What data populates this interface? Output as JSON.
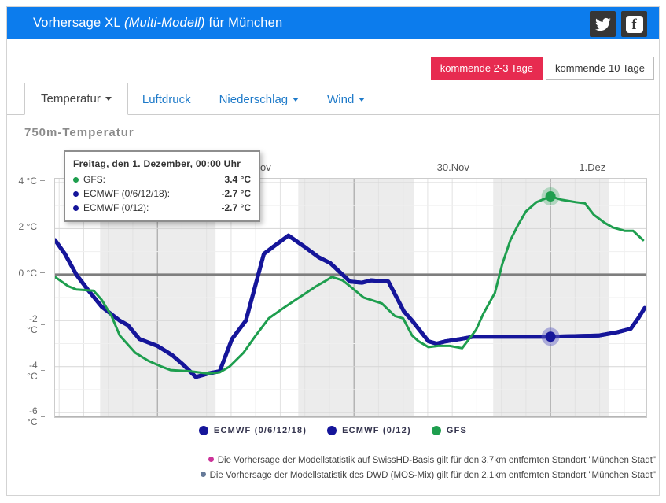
{
  "header": {
    "title_prefix": "Vorhersage XL",
    "title_italic": "(Multi-Modell)",
    "title_suffix": "für München",
    "icons": [
      "twitter-share",
      "facebook-share"
    ],
    "bg_color": "#0c7ced"
  },
  "range_buttons": [
    {
      "label": "kommende 2-3 Tage",
      "active": true,
      "color": "#e72b50"
    },
    {
      "label": "kommende 10 Tage",
      "active": false
    }
  ],
  "tabs": [
    {
      "label": "Temperatur",
      "caret": true,
      "active": true
    },
    {
      "label": "Luftdruck",
      "caret": false,
      "active": false
    },
    {
      "label": "Niederschlag",
      "caret": true,
      "active": false
    },
    {
      "label": "Wind",
      "caret": true,
      "active": false
    }
  ],
  "section_title": "750m-Temperatur",
  "tooltip": {
    "title": "Freitag, den 1. Dezember, 00:00 Uhr",
    "rows": [
      {
        "label": "GFS:",
        "value": "3.4 °C",
        "color": "#1e9e4e"
      },
      {
        "label": "ECMWF (0/6/12/18):",
        "value": "-2.7 °C",
        "color": "#15159a"
      },
      {
        "label": "ECMWF (0/12):",
        "value": "-2.7 °C",
        "color": "#15159a"
      }
    ]
  },
  "legend": [
    {
      "label": "ECMWF (0/6/12/18)",
      "color": "#15159a"
    },
    {
      "label": "ECMWF (0/12)",
      "color": "#15159a"
    },
    {
      "label": "GFS",
      "color": "#1e9e4e"
    }
  ],
  "footnotes": [
    {
      "color": "#cc3399",
      "text": "Die Vorhersage der Modellstatistik auf SwissHD-Basis gilt für den 3,7km entfernten Standort \"München Stadt\""
    },
    {
      "color": "#667a99",
      "text": "Die Vorhersage der Modellstatistik des DWD (MOS-Mix) gilt für den 2,1km entfernten Standort \"München Stadt\""
    }
  ],
  "chart_data": {
    "type": "line",
    "title": "750m-Temperatur",
    "x_unit": "hours relative to 29.Nov 00:00",
    "x_range": [
      -12.5,
      59.7
    ],
    "ylim": [
      -6.2,
      4.17
    ],
    "yticks": [
      4,
      2,
      0,
      -2,
      -4,
      -6
    ],
    "ytick_suffix": " °C",
    "grid_step_hours": 3,
    "day_labels": [
      {
        "label": "29.Nov",
        "t": 12
      },
      {
        "label": "30.Nov",
        "t": 36.2
      },
      {
        "label": "1.Dez",
        "t": 53.2
      }
    ],
    "midnight_lines": [
      0,
      24,
      48
    ],
    "night_bands": [
      [
        -7,
        7.1
      ],
      [
        17.2,
        31.3
      ],
      [
        41,
        55.1
      ]
    ],
    "night_band_color": "#ececec",
    "zero_line_color": "#7e7e7e",
    "series": [
      {
        "name": "ECMWF (0/6/12/18)",
        "color": "#15159a",
        "width": 5,
        "points": [
          [
            -12.5,
            1.5
          ],
          [
            -11.3,
            0.9
          ],
          [
            -9.9,
            0
          ],
          [
            -8.4,
            -0.7
          ],
          [
            -6.8,
            -1.4
          ],
          [
            -4.6,
            -2
          ],
          [
            -3.6,
            -2.2
          ],
          [
            -2.2,
            -2.8
          ],
          [
            0,
            -3.1
          ],
          [
            1.8,
            -3.5
          ],
          [
            3.1,
            -3.9
          ],
          [
            4.7,
            -4.45
          ],
          [
            6.2,
            -4.3
          ],
          [
            7.6,
            -4.2
          ],
          [
            9.1,
            -2.8
          ],
          [
            10.8,
            -2
          ],
          [
            13,
            0.9
          ],
          [
            14.1,
            1.2
          ],
          [
            16,
            1.7
          ],
          [
            17.8,
            1.25
          ],
          [
            19.7,
            0.75
          ],
          [
            21.1,
            0.5
          ],
          [
            22.6,
            0
          ],
          [
            23.5,
            -0.3
          ],
          [
            25,
            -0.35
          ],
          [
            26.1,
            -0.25
          ],
          [
            28.2,
            -0.3
          ],
          [
            30.1,
            -1.6
          ],
          [
            31.1,
            -2
          ],
          [
            33.1,
            -2.9
          ],
          [
            34.1,
            -3
          ],
          [
            35.2,
            -2.9
          ],
          [
            37,
            -2.8
          ],
          [
            38.6,
            -2.7
          ],
          [
            42.4,
            -2.7
          ],
          [
            48,
            -2.7
          ],
          [
            53.9,
            -2.65
          ],
          [
            56.2,
            -2.5
          ],
          [
            57.8,
            -2.35
          ],
          [
            58.7,
            -1.9
          ],
          [
            59.5,
            -1.45
          ]
        ]
      },
      {
        "name": "ECMWF (0/12)",
        "color": "#15159a",
        "width": 5,
        "points_ref": 0
      },
      {
        "name": "GFS",
        "color": "#1e9e4e",
        "width": 3,
        "points": [
          [
            -12.5,
            -0.1
          ],
          [
            -10.9,
            -0.5
          ],
          [
            -9.9,
            -0.65
          ],
          [
            -7.8,
            -0.7
          ],
          [
            -6.8,
            -1.1
          ],
          [
            -5.6,
            -1.8
          ],
          [
            -4.6,
            -2.65
          ],
          [
            -2.7,
            -3.4
          ],
          [
            -1.1,
            -3.75
          ],
          [
            0.5,
            -4
          ],
          [
            1.6,
            -4.15
          ],
          [
            4,
            -4.2
          ],
          [
            6.2,
            -4.3
          ],
          [
            7.6,
            -4.25
          ],
          [
            8.8,
            -4
          ],
          [
            10.5,
            -3.4
          ],
          [
            12,
            -2.65
          ],
          [
            13.6,
            -1.9
          ],
          [
            15.6,
            -1.4
          ],
          [
            17.5,
            -0.95
          ],
          [
            19.4,
            -0.5
          ],
          [
            20.4,
            -0.3
          ],
          [
            21.3,
            -0.1
          ],
          [
            22.6,
            -0.25
          ],
          [
            23.5,
            -0.5
          ],
          [
            25.2,
            -1
          ],
          [
            27.4,
            -1.25
          ],
          [
            29,
            -1.8
          ],
          [
            30,
            -1.9
          ],
          [
            31.1,
            -2.65
          ],
          [
            31.9,
            -2.9
          ],
          [
            33.1,
            -3.15
          ],
          [
            34.3,
            -3.1
          ],
          [
            35.7,
            -3.1
          ],
          [
            37.2,
            -3.2
          ],
          [
            38.9,
            -2.4
          ],
          [
            39.8,
            -1.7
          ],
          [
            41.2,
            -0.8
          ],
          [
            42.1,
            0.45
          ],
          [
            43.1,
            1.5
          ],
          [
            44.1,
            2.2
          ],
          [
            45,
            2.75
          ],
          [
            46.3,
            3.15
          ],
          [
            48,
            3.4
          ],
          [
            49.4,
            3.25
          ],
          [
            51.1,
            3.15
          ],
          [
            52.2,
            3.1
          ],
          [
            53.3,
            2.6
          ],
          [
            54.6,
            2.25
          ],
          [
            55.6,
            2.05
          ],
          [
            57.1,
            1.9
          ],
          [
            58.1,
            1.9
          ],
          [
            59.3,
            1.5
          ]
        ]
      }
    ],
    "markers": [
      {
        "t": 48,
        "value": 3.4,
        "color": "#1e9e4e",
        "halo": "rgba(30,158,78,0.28)"
      },
      {
        "t": 48,
        "value": -2.7,
        "color": "#15159a",
        "halo": "rgba(95,95,195,0.45)"
      }
    ],
    "legend_position": "bottom-center",
    "grid": true
  }
}
